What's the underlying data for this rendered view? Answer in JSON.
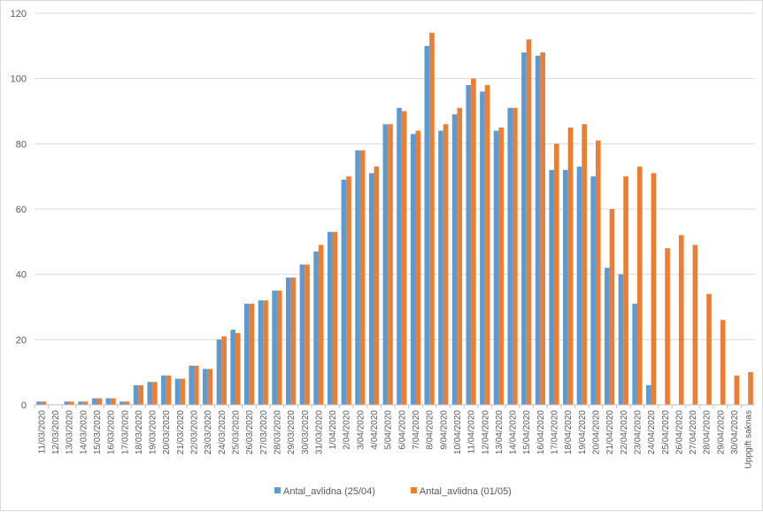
{
  "chart_data": {
    "type": "bar",
    "title": "",
    "xlabel": "",
    "ylabel": "",
    "ylim": [
      0,
      120
    ],
    "yticks": [
      0,
      20,
      40,
      60,
      80,
      100,
      120
    ],
    "grid": true,
    "legend_position": "bottom",
    "categories": [
      "11/03/2020",
      "12/03/2020",
      "13/03/2020",
      "14/03/2020",
      "15/03/2020",
      "16/03/2020",
      "17/03/2020",
      "18/03/2020",
      "19/03/2020",
      "20/03/2020",
      "21/03/2020",
      "22/03/2020",
      "23/03/2020",
      "24/03/2020",
      "25/03/2020",
      "26/03/2020",
      "27/03/2020",
      "28/03/2020",
      "29/03/2020",
      "30/03/2020",
      "31/03/2020",
      "1/04/2020",
      "2/04/2020",
      "3/04/2020",
      "4/04/2020",
      "5/04/2020",
      "6/04/2020",
      "7/04/2020",
      "8/04/2020",
      "9/04/2020",
      "10/04/2020",
      "11/04/2020",
      "12/04/2020",
      "13/04/2020",
      "14/04/2020",
      "15/04/2020",
      "16/04/2020",
      "17/04/2020",
      "18/04/2020",
      "19/04/2020",
      "20/04/2020",
      "21/04/2020",
      "22/04/2020",
      "23/04/2020",
      "24/04/2020",
      "25/04/2020",
      "26/04/2020",
      "27/04/2020",
      "28/04/2020",
      "29/04/2020",
      "30/04/2020",
      "Uppgift saknas"
    ],
    "series": [
      {
        "name": "Antal_avlidna (25/04)",
        "color": "#5b9bd5",
        "values": [
          1,
          0,
          1,
          1,
          2,
          2,
          1,
          6,
          7,
          9,
          8,
          12,
          11,
          20,
          23,
          31,
          32,
          35,
          39,
          43,
          47,
          53,
          69,
          78,
          71,
          86,
          91,
          83,
          110,
          84,
          89,
          98,
          96,
          84,
          91,
          108,
          107,
          72,
          72,
          73,
          70,
          42,
          40,
          31,
          6,
          0,
          0,
          0,
          0,
          0,
          0,
          0
        ]
      },
      {
        "name": "Antal_avlidna (01/05)",
        "color": "#ed7d31",
        "values": [
          1,
          0,
          1,
          1,
          2,
          2,
          1,
          6,
          7,
          9,
          8,
          12,
          11,
          21,
          22,
          31,
          32,
          35,
          39,
          43,
          49,
          53,
          70,
          78,
          73,
          86,
          90,
          84,
          114,
          86,
          91,
          100,
          98,
          85,
          91,
          112,
          108,
          80,
          85,
          86,
          81,
          60,
          70,
          73,
          71,
          48,
          52,
          49,
          34,
          26,
          9,
          10
        ]
      }
    ]
  }
}
